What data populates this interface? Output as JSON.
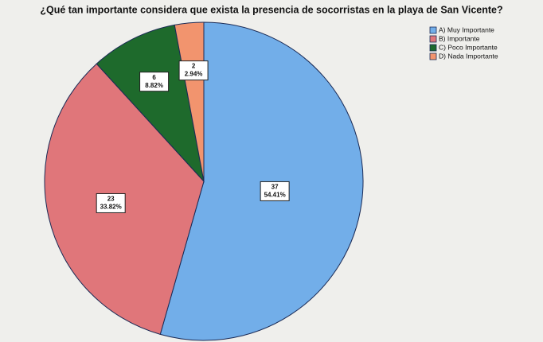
{
  "chart_data": {
    "type": "pie",
    "title": "¿Qué tan importante considera que exista la presencia de socorristas en la playa de San Vicente?",
    "categories": [
      "A) Muy Importante",
      "B) Importante",
      "C) Poco Importante",
      "D) Nada Importante"
    ],
    "values": [
      37,
      23,
      6,
      2
    ],
    "percentages": [
      54.41,
      33.82,
      8.82,
      2.94
    ],
    "percentage_labels": [
      "54.41%",
      "33.82%",
      "8.82%",
      "2.94%"
    ],
    "colors": [
      "#72aee9",
      "#e0767a",
      "#1e6a2c",
      "#f2946e"
    ],
    "legend": "top-right",
    "direction": "clockwise"
  }
}
